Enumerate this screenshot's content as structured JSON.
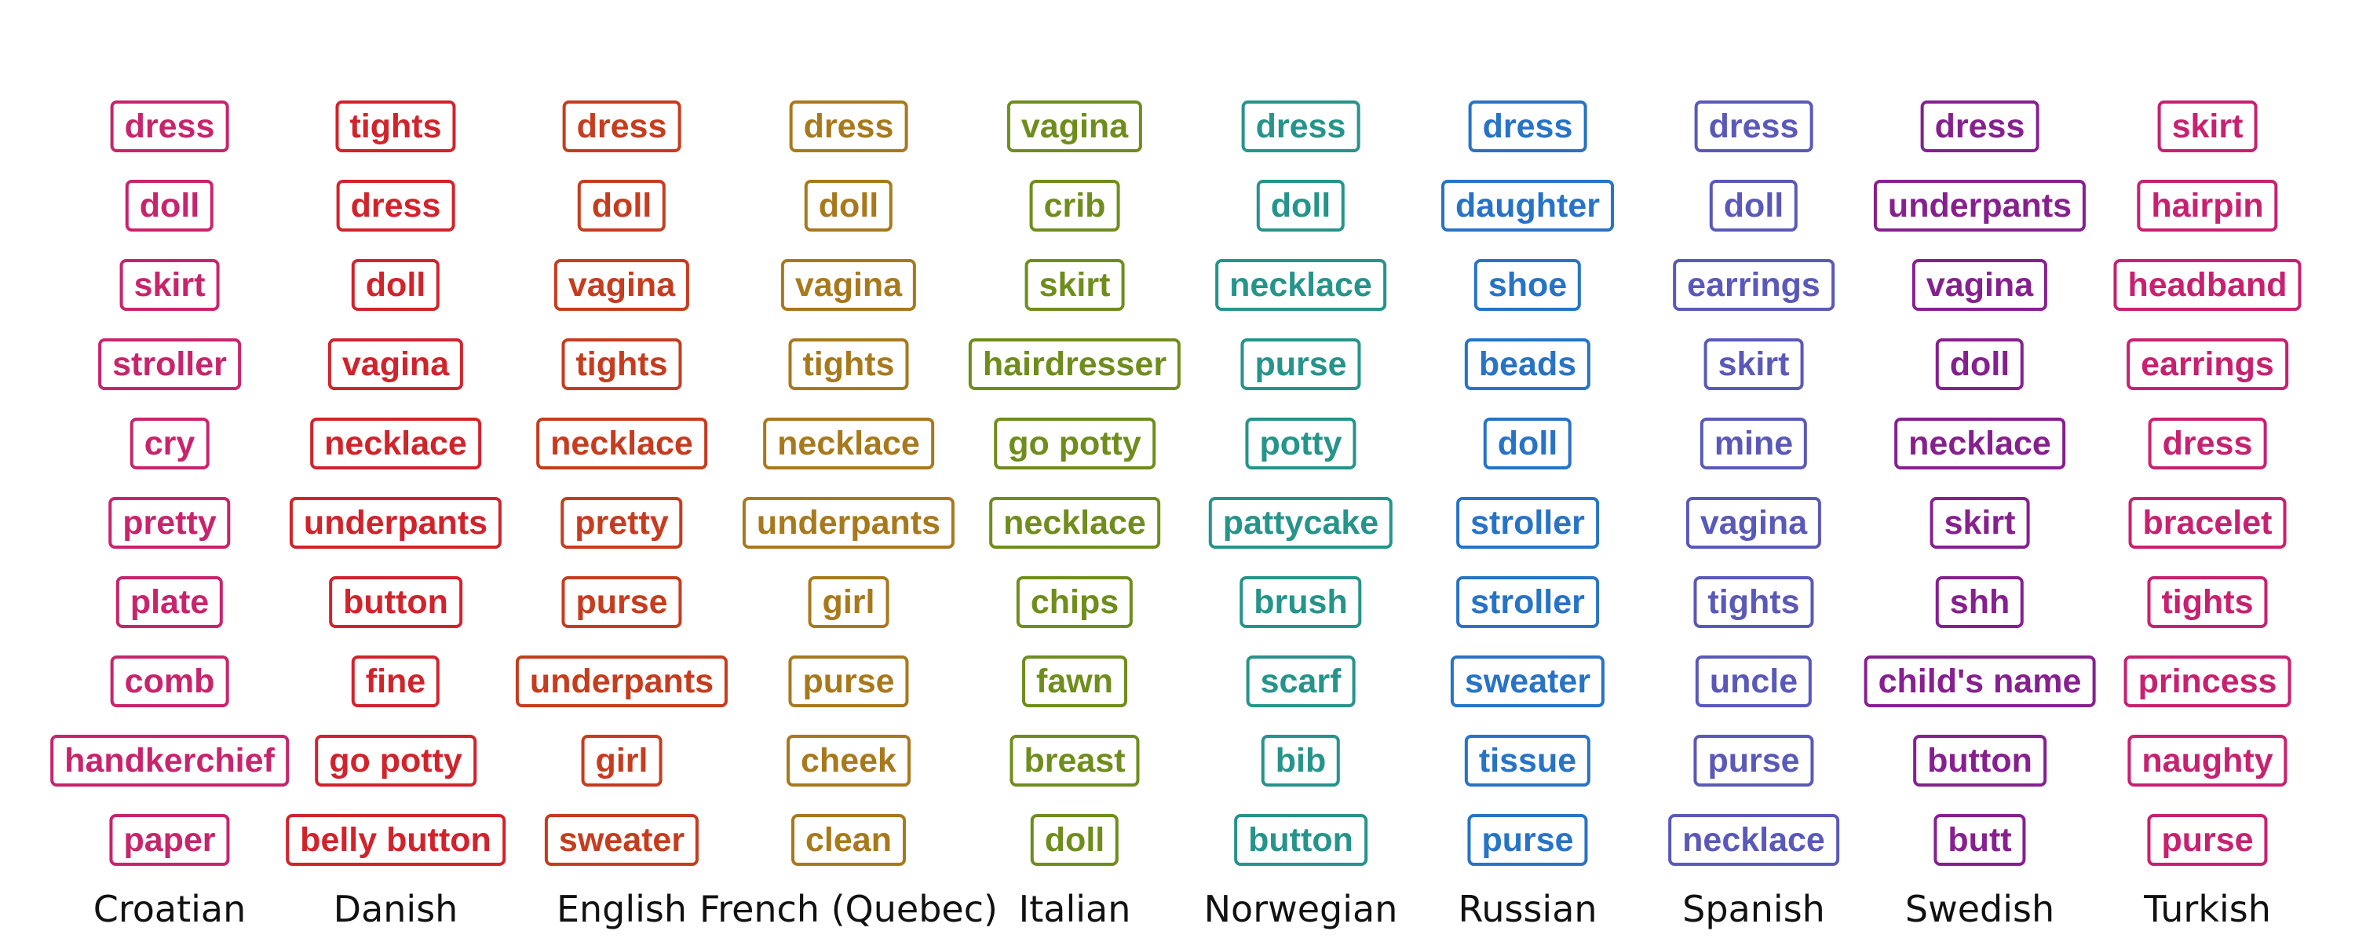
{
  "chart_data": {
    "type": "table",
    "title": "",
    "columns": [
      {
        "language": "Croatian",
        "color": "#c8246c",
        "words": [
          "dress",
          "doll",
          "skirt",
          "stroller",
          "cry",
          "pretty",
          "plate",
          "comb",
          "handkerchief",
          "paper"
        ]
      },
      {
        "language": "Danish",
        "color": "#d1232b",
        "words": [
          "tights",
          "dress",
          "doll",
          "vagina",
          "necklace",
          "underpants",
          "button",
          "fine",
          "go potty",
          "belly button"
        ]
      },
      {
        "language": "English",
        "color": "#c63c1e",
        "words": [
          "dress",
          "doll",
          "vagina",
          "tights",
          "necklace",
          "pretty",
          "purse",
          "underpants",
          "girl",
          "sweater"
        ]
      },
      {
        "language": "French (Quebec)",
        "color": "#a8791c",
        "words": [
          "dress",
          "doll",
          "vagina",
          "tights",
          "necklace",
          "underpants",
          "girl",
          "purse",
          "cheek",
          "clean"
        ]
      },
      {
        "language": "Italian",
        "color": "#6f8d1c",
        "words": [
          "vagina",
          "crib",
          "skirt",
          "hairdresser",
          "go potty",
          "necklace",
          "chips",
          "fawn",
          "breast",
          "doll"
        ]
      },
      {
        "language": "Norwegian",
        "color": "#25948a",
        "words": [
          "dress",
          "doll",
          "necklace",
          "purse",
          "potty",
          "pattycake",
          "brush",
          "scarf",
          "bib",
          "button"
        ]
      },
      {
        "language": "Russian",
        "color": "#2773c6",
        "words": [
          "dress",
          "daughter",
          "shoe",
          "beads",
          "doll",
          "stroller",
          "stroller",
          "sweater",
          "tissue",
          "purse"
        ]
      },
      {
        "language": "Spanish",
        "color": "#5a59b9",
        "words": [
          "dress",
          "doll",
          "earrings",
          "skirt",
          "mine",
          "vagina",
          "tights",
          "uncle",
          "purse",
          "necklace"
        ]
      },
      {
        "language": "Swedish",
        "color": "#86208f",
        "words": [
          "dress",
          "underpants",
          "vagina",
          "doll",
          "necklace",
          "skirt",
          "shh",
          "child's name",
          "button",
          "butt"
        ]
      },
      {
        "language": "Turkish",
        "color": "#c72170",
        "words": [
          "skirt",
          "hairpin",
          "headband",
          "earrings",
          "dress",
          "bracelet",
          "tights",
          "princess",
          "naughty",
          "purse"
        ]
      }
    ]
  }
}
